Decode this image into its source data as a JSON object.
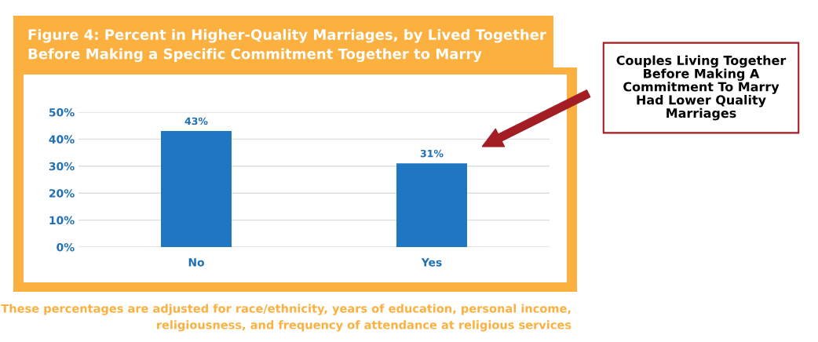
{
  "chart_data": {
    "type": "bar",
    "title": "Figure 4: Percent in Higher-Quality Marriages, by Lived Together\nBefore Making a Specific Commitment Together to Marry",
    "categories": [
      "No",
      "Yes"
    ],
    "values": [
      43,
      31
    ],
    "color": "#1f77c2",
    "value_labels": [
      "43%",
      "31%"
    ],
    "ylim": [
      0,
      50
    ],
    "yticks": [
      {
        "value": 0,
        "label": "0%"
      },
      {
        "value": 10,
        "label": "10%"
      },
      {
        "value": 20,
        "label": "20%"
      },
      {
        "value": 30,
        "label": "30%"
      },
      {
        "value": 40,
        "label": "40%"
      },
      {
        "value": 50,
        "label": "50%"
      }
    ],
    "grid": "y",
    "annotations": [
      "Couples Living Together\nBefore Making A\nCommitment To Marry\nHad Lower Quality\nMarriages",
      "These percentages are adjusted for race/ethnicity, years of education, personal income,\nreligiousness, and frequency of attendance at religious services"
    ]
  }
}
